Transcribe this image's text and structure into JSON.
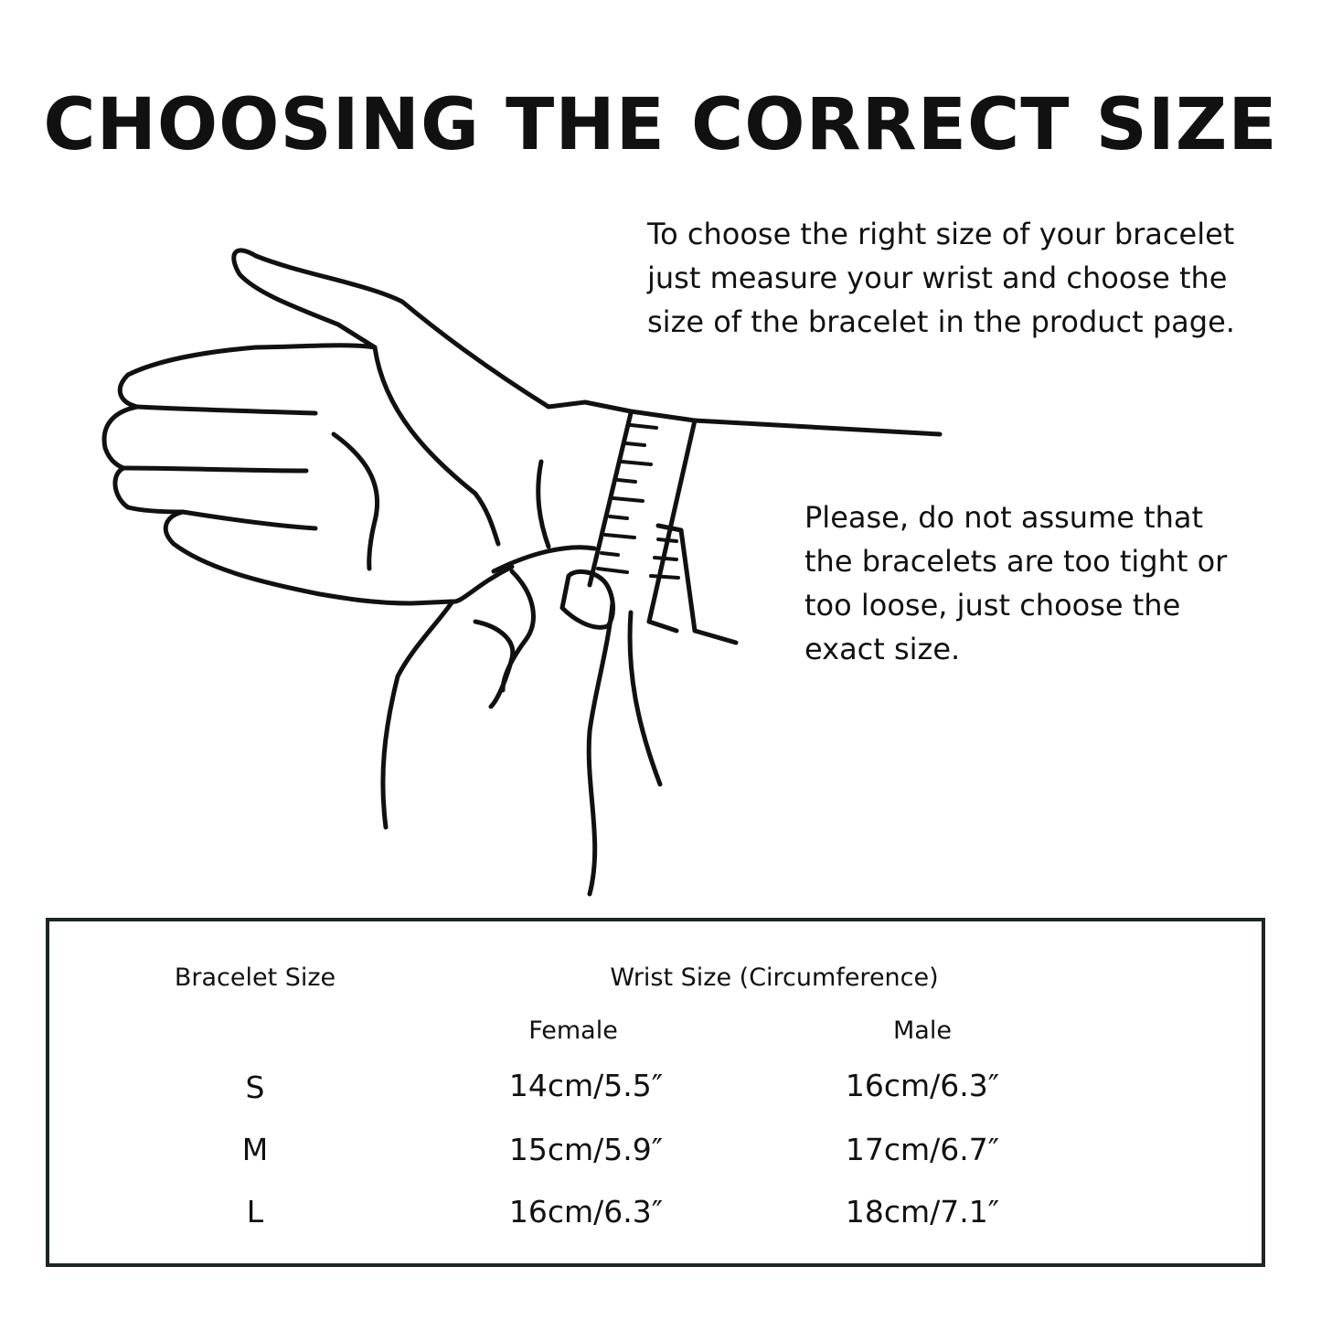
{
  "title": "CHOOSING THE CORRECT SIZE",
  "intro_lines": [
    "To choose the right size of your bracelet",
    "just measure your wrist and choose the",
    "size of the bracelet in the product page."
  ],
  "note_lines": [
    "Please, do not assume that",
    "the bracelets are too tight or",
    "too loose, just choose the",
    "exact size."
  ],
  "illustration": "hand-measuring-wrist-with-tape",
  "table": {
    "col_bracelet": "Bracelet Size",
    "col_wrist": "Wrist Size (Circumference)",
    "col_female": "Female",
    "col_male": "Male",
    "rows": [
      {
        "size": "S",
        "female": "14cm/5.5″",
        "male": "16cm/6.3″"
      },
      {
        "size": "M",
        "female": "15cm/5.9″",
        "male": "17cm/6.7″"
      },
      {
        "size": "L",
        "female": "16cm/6.3″",
        "male": "18cm/7.1″"
      }
    ],
    "border_color": "#1c2622"
  }
}
